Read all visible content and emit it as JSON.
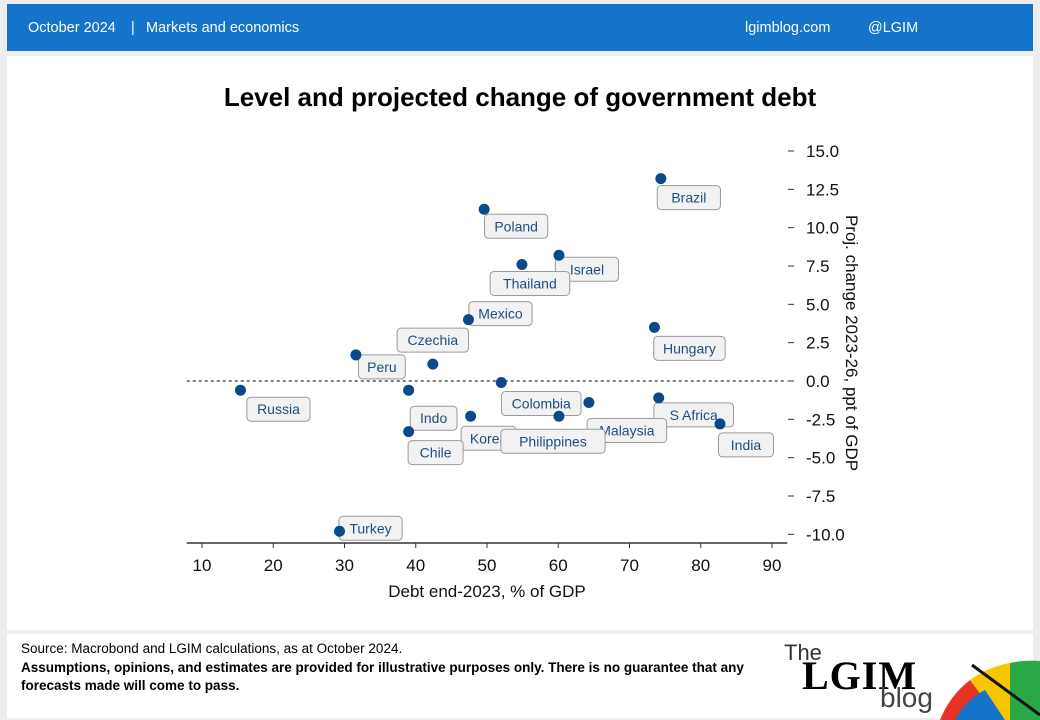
{
  "header": {
    "date": "October 2024",
    "separator": "|",
    "section": "Markets and economics",
    "site": "lgimblog.com",
    "handle": "@LGIM"
  },
  "footer": {
    "source": "Source: Macrobond  and LGIM  calculations, as at October 2024.",
    "disclaimer": "Assumptions,  opinions, and estimates are provided for illustrative purposes only.  There is no guarantee that any forecasts made will come to pass."
  },
  "logo": {
    "the": "The",
    "name": "LGIM",
    "blog": "blog"
  },
  "colors": {
    "header": "#1574c9",
    "marker": "#0b4a8a"
  },
  "chart_data": {
    "type": "scatter",
    "title": "Level and projected change of government debt",
    "xlabel": "Debt end-2023, % of GDP",
    "ylabel": "Proj. change 2023-26, ppt of GDP",
    "xlim": [
      8,
      92
    ],
    "ylim": [
      -10.5,
      15
    ],
    "x_ticks": [
      10,
      20,
      30,
      40,
      50,
      60,
      70,
      80,
      90
    ],
    "y_ticks": [
      15.0,
      12.5,
      10.0,
      7.5,
      5.0,
      2.5,
      0.0,
      -2.5,
      -5.0,
      -7.5,
      -10.0
    ],
    "y_tick_labels": [
      "15.0",
      "12.5",
      "10.0",
      "7.5",
      "5.0",
      "2.5",
      "0.0",
      "-2.5",
      "-5.0",
      "-7.5",
      "-10.0"
    ],
    "reference_line_y": 0,
    "points": [
      {
        "label": "Brazil",
        "x": 74.4,
        "y": 13.2
      },
      {
        "label": "Poland",
        "x": 49.6,
        "y": 11.2
      },
      {
        "label": "Israel",
        "x": 60.1,
        "y": 8.2
      },
      {
        "label": "Thailand",
        "x": 54.9,
        "y": 7.6
      },
      {
        "label": "Mexico",
        "x": 47.4,
        "y": 4.0
      },
      {
        "label": "Hungary",
        "x": 73.5,
        "y": 3.5
      },
      {
        "label": "Peru",
        "x": 31.6,
        "y": 1.7
      },
      {
        "label": "Czechia",
        "x": 42.4,
        "y": 1.1
      },
      {
        "label": "Colombia",
        "x": 52.0,
        "y": -0.1
      },
      {
        "label": "Russia",
        "x": 15.4,
        "y": -0.6
      },
      {
        "label": "Indo",
        "x": 39.0,
        "y": -0.6
      },
      {
        "label": "S Africa",
        "x": 74.1,
        "y": -1.1
      },
      {
        "label": "Malaysia",
        "x": 64.3,
        "y": -1.4
      },
      {
        "label": "Korea",
        "x": 47.7,
        "y": -2.3
      },
      {
        "label": "Philippines",
        "x": 60.1,
        "y": -2.3
      },
      {
        "label": "India",
        "x": 82.7,
        "y": -2.8
      },
      {
        "label": "Chile",
        "x": 39.0,
        "y": -3.3
      },
      {
        "label": "Turkey",
        "x": 29.3,
        "y": -9.8
      }
    ]
  }
}
